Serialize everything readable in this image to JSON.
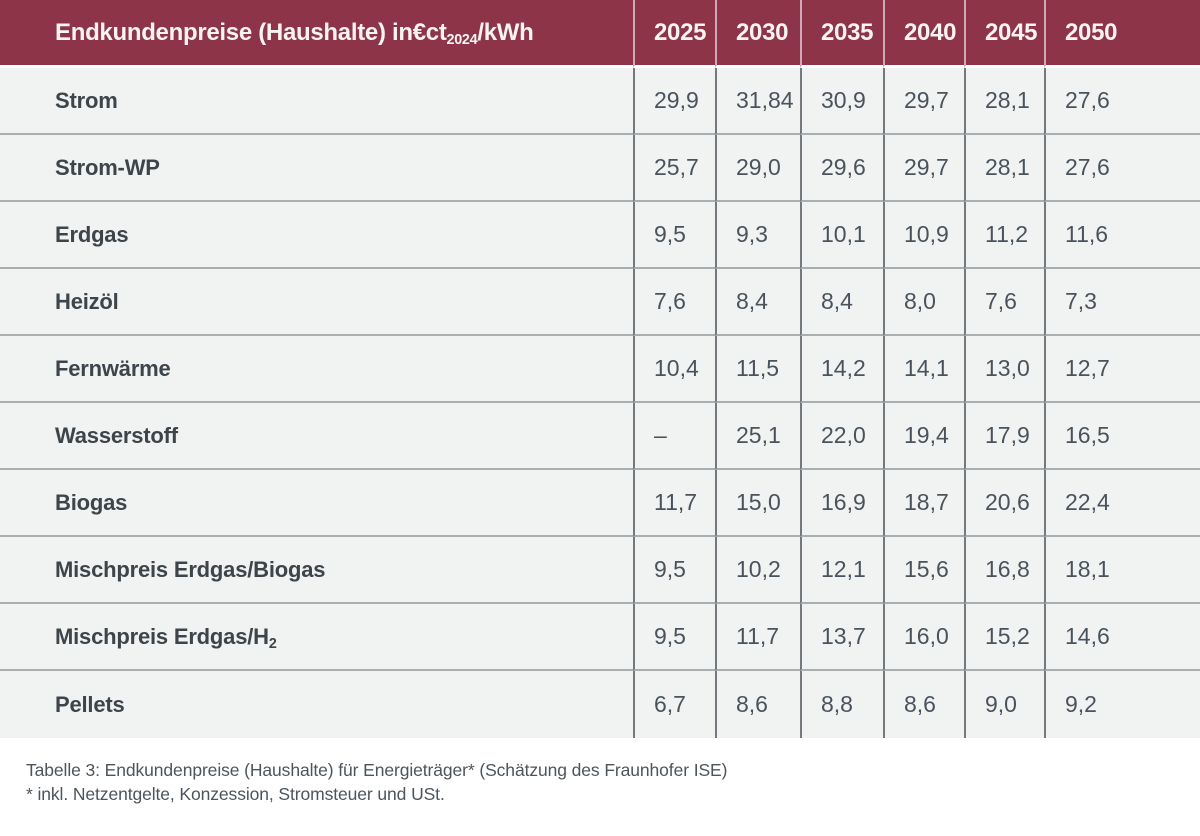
{
  "table": {
    "title": {
      "prefix": "Endkundenpreise (Haushalte) in€ct",
      "subscript": "2024",
      "suffix": "/kWh"
    },
    "years": [
      "2025",
      "2030",
      "2035",
      "2040",
      "2045",
      "2050"
    ],
    "rows": [
      {
        "label": "Strom",
        "values": [
          "29,9",
          "31,84",
          "30,9",
          "29,7",
          "28,1",
          "27,6"
        ]
      },
      {
        "label": "Strom-WP",
        "values": [
          "25,7",
          "29,0",
          "29,6",
          "29,7",
          "28,1",
          "27,6"
        ]
      },
      {
        "label": "Erdgas",
        "values": [
          "9,5",
          "9,3",
          "10,1",
          "10,9",
          "11,2",
          "11,6"
        ]
      },
      {
        "label": "Heizöl",
        "values": [
          "7,6",
          "8,4",
          "8,4",
          "8,0",
          "7,6",
          "7,3"
        ]
      },
      {
        "label": "Fernwärme",
        "values": [
          "10,4",
          "11,5",
          "14,2",
          "14,1",
          "13,0",
          "12,7"
        ]
      },
      {
        "label": "Wasserstoff",
        "values": [
          "–",
          "25,1",
          "22,0",
          "19,4",
          "17,9",
          "16,5"
        ]
      },
      {
        "label": "Biogas",
        "values": [
          "11,7",
          "15,0",
          "16,9",
          "18,7",
          "20,6",
          "22,4"
        ]
      },
      {
        "label": "Mischpreis Erdgas/Biogas",
        "values": [
          "9,5",
          "10,2",
          "12,1",
          "15,6",
          "16,8",
          "18,1"
        ]
      },
      {
        "label": "Mischpreis Erdgas/H",
        "label_subscript": "2",
        "values": [
          "9,5",
          "11,7",
          "13,7",
          "16,0",
          "15,2",
          "14,6"
        ]
      },
      {
        "label": "Pellets",
        "values": [
          "6,7",
          "8,6",
          "8,8",
          "8,6",
          "9,0",
          "9,2"
        ]
      }
    ]
  },
  "caption": {
    "line1": "Tabelle 3: Endkundenpreise (Haushalte) für Energieträger* (Schätzung des Fraunhofer ISE)",
    "line2": "* inkl. Netzentgelte, Konzession, Stromsteuer und USt."
  },
  "colors": {
    "header_bg": "#8e3449",
    "header_text": "#f8f4ef",
    "header_divider": "#cfaab4",
    "body_bg": "#f1f2f2",
    "page_bg": "#ffffff",
    "label_text": "#3d454b",
    "value_text": "#4a535c",
    "row_divider": "#a9aeb1",
    "column_divider": "#74797e",
    "caption_text": "#4d555c"
  }
}
